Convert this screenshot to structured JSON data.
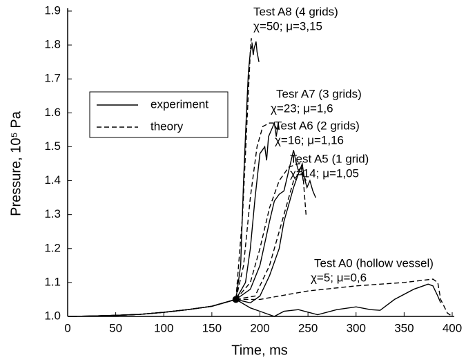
{
  "chart_data": {
    "type": "line",
    "xlabel": "Time, ms",
    "ylabel": "Pressure, 10⁵ Pa",
    "xlim": [
      0,
      400
    ],
    "ylim": [
      1.0,
      1.9
    ],
    "xticks": [
      0,
      50,
      100,
      150,
      200,
      250,
      300,
      350,
      400
    ],
    "yticks": [
      {
        "value": 1.0,
        "label": "1.0"
      },
      1.1,
      1.2,
      1.3,
      1.4,
      1.5,
      1.6,
      1.7,
      1.8,
      1.9
    ],
    "color": "#000000",
    "legend": [
      {
        "name": "experiment",
        "dashed": false
      },
      {
        "name": "theory",
        "dashed": true
      }
    ],
    "marker": {
      "x": 175,
      "y": 1.05
    },
    "tests": [
      {
        "title": "Test A8 (4 grids)",
        "params": "χ=50; μ=3,15",
        "experiment": {
          "x": [
            0,
            25,
            50,
            75,
            100,
            125,
            150,
            175,
            180,
            183,
            186,
            188,
            190,
            192,
            193,
            194,
            196,
            197,
            199
          ],
          "values": [
            1.0,
            1.001,
            1.003,
            1.006,
            1.012,
            1.02,
            1.03,
            1.05,
            1.15,
            1.4,
            1.6,
            1.72,
            1.78,
            1.8,
            1.77,
            1.79,
            1.81,
            1.78,
            1.75
          ]
        },
        "theory": {
          "x": [
            175,
            182,
            187,
            190,
            191,
            193
          ],
          "values": [
            1.05,
            1.3,
            1.6,
            1.78,
            1.82,
            1.78
          ]
        }
      },
      {
        "title": "Tesr A7 (3 grids)",
        "params": "χ=23; μ=1,6",
        "experiment": {
          "x": [
            0,
            25,
            50,
            75,
            100,
            125,
            150,
            175,
            185,
            190,
            195,
            200,
            205,
            207,
            209,
            212,
            215,
            217,
            219,
            220
          ],
          "values": [
            1.0,
            1.001,
            1.003,
            1.006,
            1.012,
            1.02,
            1.03,
            1.05,
            1.1,
            1.2,
            1.35,
            1.48,
            1.5,
            1.46,
            1.53,
            1.55,
            1.57,
            1.53,
            1.57,
            1.55
          ]
        },
        "theory": {
          "x": [
            175,
            183,
            190,
            197,
            203,
            210,
            214,
            218
          ],
          "values": [
            1.05,
            1.15,
            1.35,
            1.5,
            1.56,
            1.57,
            1.57,
            1.55
          ]
        }
      },
      {
        "title": "Test A6 (2 grids)",
        "params": "χ=16; μ=1,16",
        "experiment": {
          "x": [
            0,
            25,
            50,
            75,
            100,
            125,
            150,
            175,
            190,
            200,
            210,
            215,
            220,
            225,
            230,
            235,
            238,
            240,
            243,
            245
          ],
          "values": [
            1.0,
            1.001,
            1.003,
            1.006,
            1.012,
            1.02,
            1.03,
            1.05,
            1.08,
            1.15,
            1.28,
            1.34,
            1.36,
            1.37,
            1.43,
            1.49,
            1.45,
            1.43,
            1.44,
            1.4
          ]
        },
        "theory": {
          "x": [
            175,
            190,
            200,
            210,
            220,
            230,
            240,
            244,
            246,
            248
          ],
          "values": [
            1.05,
            1.1,
            1.2,
            1.32,
            1.4,
            1.44,
            1.45,
            1.45,
            1.37,
            1.3
          ]
        }
      },
      {
        "title": "Test A5 (1 grid)",
        "params": "χ=14; μ=1,05",
        "experiment": {
          "x": [
            0,
            25,
            50,
            75,
            100,
            125,
            150,
            175,
            190,
            200,
            210,
            220,
            225,
            230,
            235,
            240,
            244,
            246,
            249,
            252,
            255,
            258
          ],
          "values": [
            1.0,
            1.001,
            1.003,
            1.006,
            1.012,
            1.02,
            1.03,
            1.05,
            1.04,
            1.06,
            1.12,
            1.2,
            1.28,
            1.33,
            1.38,
            1.42,
            1.45,
            1.41,
            1.38,
            1.4,
            1.37,
            1.35
          ]
        },
        "theory": {
          "x": [
            175,
            195,
            210,
            220,
            228,
            235,
            240,
            245,
            248
          ],
          "values": [
            1.05,
            1.06,
            1.15,
            1.25,
            1.33,
            1.4,
            1.42,
            1.42,
            1.4
          ]
        }
      },
      {
        "title": "Test A0 (hollow vessel)",
        "params": "χ=5; μ=0,6",
        "experiment": {
          "x": [
            0,
            25,
            50,
            75,
            100,
            125,
            150,
            175,
            190,
            205,
            215,
            225,
            240,
            260,
            280,
            300,
            315,
            325,
            340,
            360,
            375,
            380,
            385,
            388
          ],
          "values": [
            1.0,
            1.001,
            1.003,
            1.006,
            1.012,
            1.02,
            1.03,
            1.05,
            1.025,
            1.01,
            1.0,
            1.015,
            1.02,
            1.005,
            1.02,
            1.028,
            1.02,
            1.018,
            1.05,
            1.08,
            1.095,
            1.09,
            1.06,
            1.04
          ]
        },
        "theory": {
          "x": [
            175,
            200,
            250,
            300,
            350,
            380,
            385,
            388,
            395,
            400
          ],
          "values": [
            1.05,
            1.05,
            1.075,
            1.09,
            1.1,
            1.11,
            1.1,
            1.05,
            1.01,
            1.0
          ]
        }
      }
    ]
  }
}
